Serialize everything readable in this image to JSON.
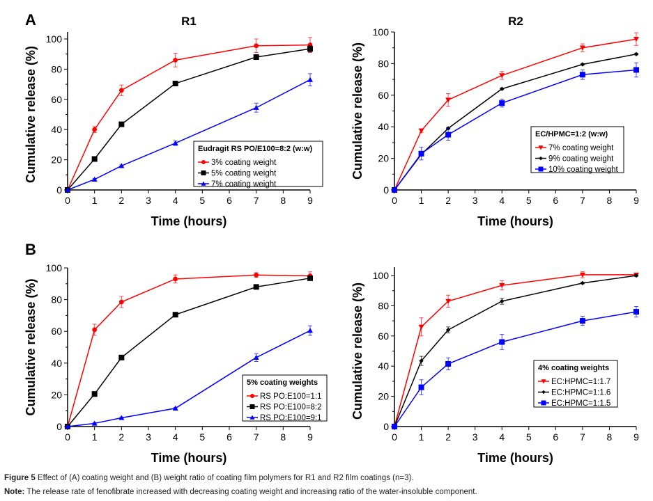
{
  "figure": {
    "caption_label": "Figure 5",
    "caption_text": " Effect of (A) coating weight and (B) weight ratio of coating film polymers for R1 and R2 film coatings (n=3).",
    "note_label": "Note:",
    "note_text": " The release rate of fenofibrate increased with decreasing coating weight and increasing ratio of the water-insoluble component."
  },
  "colors": {
    "red": "#ff0000",
    "black": "#000000",
    "blue": "#0000ff"
  },
  "chart_data": [
    {
      "panel": "A",
      "type": "line",
      "title": "R1",
      "panel_label": "A",
      "xlabel": "Time (hours)",
      "ylabel": "Cumulative release (%)",
      "x": [
        0,
        1,
        2,
        4,
        7,
        9
      ],
      "xticks": [
        0,
        1,
        2,
        3,
        4,
        5,
        6,
        7,
        8,
        9
      ],
      "yticks": [
        0,
        20,
        40,
        60,
        80,
        100
      ],
      "xlim": [
        0,
        9
      ],
      "ylim": [
        0,
        105
      ],
      "grid": false,
      "legend_position": "bottom-right",
      "legend_title": "Eudragit RS PO/E100=8:2 (w:w)",
      "series": [
        {
          "name": "3% coating weight",
          "color": "#ff0000",
          "marker": "circle",
          "values": [
            0,
            40,
            66,
            86,
            95.5,
            96
          ],
          "errors": [
            0,
            2,
            3.5,
            4.5,
            4.5,
            5
          ]
        },
        {
          "name": "5% coating weight",
          "color": "#000000",
          "marker": "square",
          "values": [
            0,
            20.5,
            43.5,
            70.5,
            88,
            93.5
          ],
          "errors": [
            0,
            1.5,
            1,
            1,
            1,
            2
          ]
        },
        {
          "name": "7% coating weight",
          "color": "#0000ff",
          "marker": "triangle-up",
          "values": [
            0,
            7,
            16,
            31,
            54.5,
            73
          ],
          "errors": [
            0,
            0.5,
            0.5,
            1.5,
            3,
            4
          ]
        }
      ]
    },
    {
      "panel": "A",
      "type": "line",
      "title": "R2",
      "panel_label": "",
      "xlabel": "Time (hours)",
      "ylabel": "Cumulative release (%)",
      "x": [
        0,
        1,
        2,
        4,
        7,
        9
      ],
      "xticks": [
        0,
        1,
        2,
        3,
        4,
        5,
        6,
        7,
        8,
        9
      ],
      "yticks": [
        0,
        20,
        40,
        60,
        80,
        100
      ],
      "xlim": [
        0,
        9
      ],
      "ylim": [
        0,
        100
      ],
      "grid": false,
      "legend_position": "bottom-right",
      "legend_title": "EC/HPMC=1:2 (w:w)",
      "series": [
        {
          "name": "7% coating weight",
          "color": "#ff0000",
          "marker": "triangle-down",
          "values": [
            0,
            37.5,
            57,
            72.5,
            90,
            95.5
          ],
          "errors": [
            0,
            1,
            4,
            2.5,
            2.5,
            4
          ]
        },
        {
          "name": "9% coating weight",
          "color": "#000000",
          "marker": "diamond",
          "values": [
            0,
            22.5,
            39,
            64,
            79.5,
            86
          ],
          "errors": [
            0,
            0.5,
            0.5,
            0.5,
            0.5,
            0.5
          ]
        },
        {
          "name": "10% coating weight",
          "color": "#0000ff",
          "marker": "square",
          "values": [
            0,
            23,
            35,
            55,
            73,
            76
          ],
          "errors": [
            0,
            4,
            3.5,
            2.5,
            3,
            4.5
          ]
        }
      ]
    },
    {
      "panel": "B",
      "type": "line",
      "title": "",
      "panel_label": "B",
      "xlabel": "Time (hours)",
      "ylabel": "Cumulative release (%)",
      "x": [
        0,
        1,
        2,
        4,
        7,
        9
      ],
      "xticks": [
        0,
        1,
        2,
        3,
        4,
        5,
        6,
        7,
        8,
        9
      ],
      "yticks": [
        0,
        20,
        40,
        60,
        80,
        100
      ],
      "xlim": [
        0,
        9
      ],
      "ylim": [
        0,
        100
      ],
      "grid": false,
      "legend_position": "bottom-right",
      "legend_title": "5% coating weights",
      "series": [
        {
          "name": "RS PO:E100=1:1",
          "color": "#ff0000",
          "marker": "circle",
          "values": [
            0,
            61,
            78.5,
            93,
            95.5,
            95
          ],
          "errors": [
            0,
            3.5,
            3.5,
            2.5,
            1.5,
            2.5
          ]
        },
        {
          "name": "RS PO:E100=8:2",
          "color": "#000000",
          "marker": "square",
          "values": [
            0,
            20.5,
            43.5,
            70.5,
            88,
            93.5
          ],
          "errors": [
            0,
            1.5,
            1,
            1,
            1,
            1
          ]
        },
        {
          "name": "RS PO:E100=9:1",
          "color": "#0000ff",
          "marker": "triangle-up",
          "values": [
            0,
            2,
            5.5,
            11.5,
            43.5,
            60.5
          ],
          "errors": [
            0,
            0.5,
            0.5,
            0.5,
            2.5,
            3
          ]
        }
      ]
    },
    {
      "panel": "B",
      "type": "line",
      "title": "",
      "panel_label": "",
      "xlabel": "Time (hours)",
      "ylabel": "Cumulative release (%)",
      "x": [
        0,
        1,
        2,
        4,
        7,
        9
      ],
      "xticks": [
        0,
        1,
        2,
        3,
        4,
        5,
        6,
        7,
        8,
        9
      ],
      "yticks": [
        0,
        20,
        40,
        60,
        80,
        100
      ],
      "xlim": [
        0,
        9
      ],
      "ylim": [
        0,
        105
      ],
      "grid": false,
      "legend_position": "bottom-right",
      "legend_title": "4% coating weights",
      "series": [
        {
          "name": "EC:HPMC=1:1.7",
          "color": "#ff0000",
          "marker": "triangle-down",
          "values": [
            0,
            66,
            83,
            93.5,
            100.5,
            100.5
          ],
          "errors": [
            0,
            6,
            4,
            3,
            2,
            1
          ]
        },
        {
          "name": "EC:HPMC=1:1.6",
          "color": "#000000",
          "marker": "diamond",
          "values": [
            0,
            43.5,
            64,
            83,
            95,
            100
          ],
          "errors": [
            0,
            3,
            2,
            2,
            0.5,
            0.5
          ]
        },
        {
          "name": "EC:HPMC=1:1.5",
          "color": "#0000ff",
          "marker": "square",
          "values": [
            0,
            26,
            41.5,
            56,
            70,
            76
          ],
          "errors": [
            0,
            5,
            4,
            5,
            3,
            3.5
          ]
        }
      ]
    }
  ]
}
